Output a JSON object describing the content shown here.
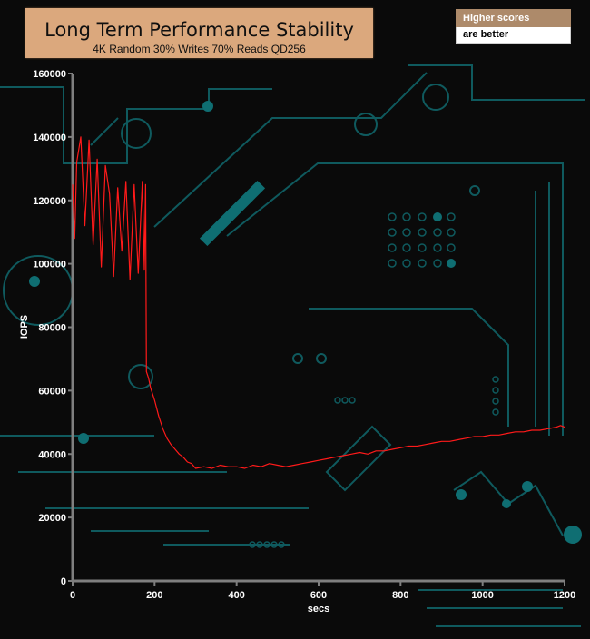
{
  "chart_data": {
    "type": "line",
    "title": "Long Term Performance Stability",
    "subtitle": "4K Random 30% Writes 70% Reads QD256",
    "xlabel": "secs",
    "ylabel": "IOPS",
    "xlim": [
      0,
      1200
    ],
    "ylim": [
      0,
      160000
    ],
    "x_ticks": [
      "0",
      "200",
      "400",
      "600",
      "800",
      "1000",
      "1200"
    ],
    "y_ticks": [
      "0",
      "20000",
      "40000",
      "60000",
      "80000",
      "100000",
      "120000",
      "140000",
      "160000"
    ],
    "grid": false,
    "legend_text": [
      "Higher scores",
      "are better"
    ],
    "line_color": "#ff1a1a",
    "axis_color": "#7f7f7f",
    "series": [
      {
        "x": [
          0,
          5,
          10,
          20,
          30,
          40,
          50,
          60,
          70,
          80,
          90,
          100,
          110,
          120,
          130,
          140,
          150,
          160,
          170,
          175,
          178,
          180,
          185,
          190,
          200,
          210,
          220,
          230,
          240,
          250,
          260,
          270,
          280,
          290,
          300,
          320,
          340,
          360,
          380,
          400,
          420,
          440,
          460,
          480,
          500,
          520,
          540,
          560,
          580,
          600,
          620,
          640,
          660,
          680,
          700,
          720,
          740,
          760,
          780,
          800,
          820,
          840,
          860,
          880,
          900,
          920,
          940,
          960,
          980,
          1000,
          1020,
          1040,
          1060,
          1080,
          1100,
          1120,
          1140,
          1160,
          1180,
          1190,
          1200
        ],
        "y": [
          125000,
          108000,
          132000,
          140000,
          112000,
          139000,
          106000,
          133000,
          99000,
          131000,
          122000,
          96000,
          124000,
          104000,
          126000,
          95000,
          125000,
          97000,
          126000,
          98000,
          125000,
          66000,
          64000,
          61000,
          57000,
          52000,
          48000,
          45000,
          43000,
          41500,
          40000,
          39000,
          37500,
          37000,
          35500,
          36000,
          35500,
          36500,
          36000,
          36000,
          35500,
          36500,
          36000,
          37000,
          36500,
          36000,
          36500,
          37000,
          37500,
          38000,
          38500,
          39000,
          39500,
          40000,
          40500,
          40000,
          41000,
          41000,
          41500,
          42000,
          42500,
          42500,
          43000,
          43500,
          44000,
          44000,
          44500,
          45000,
          45500,
          45500,
          46000,
          46000,
          46500,
          47000,
          47000,
          47500,
          47500,
          48000,
          48500,
          49000,
          48500
        ]
      }
    ]
  }
}
